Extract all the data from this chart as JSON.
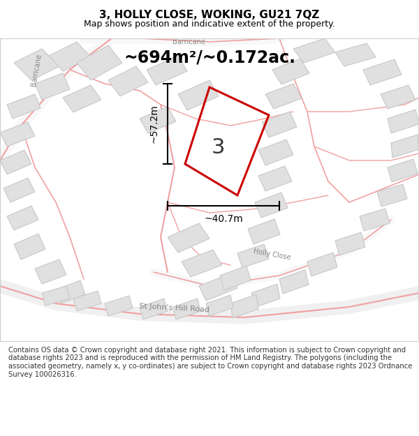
{
  "title": "3, HOLLY CLOSE, WOKING, GU21 7QZ",
  "subtitle": "Map shows position and indicative extent of the property.",
  "area_text": "~694m²/~0.172ac.",
  "width_text": "~40.7m",
  "height_text": "~57.2m",
  "property_number": "3",
  "footer": "Contains OS data © Crown copyright and database right 2021. This information is subject to Crown copyright and database rights 2023 and is reproduced with the permission of HM Land Registry. The polygons (including the associated geometry, namely x, y co-ordinates) are subject to Crown copyright and database rights 2023 Ordnance Survey 100026316.",
  "bg_color": "#f5f5f5",
  "map_bg": "#f8f8f8",
  "road_color": "#f0a0a0",
  "building_color": "#e0e0e0",
  "building_edge": "#cccccc",
  "property_color": "#cc0000",
  "dim_color": "#000000",
  "title_color": "#000000",
  "footer_color": "#333333"
}
